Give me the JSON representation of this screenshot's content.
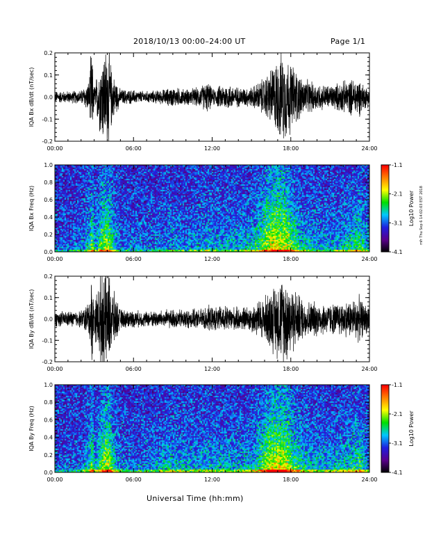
{
  "header": {
    "title": "2018/10/13  00:00–24:00 UT",
    "page": "Page 1/1"
  },
  "footer": {
    "xlabel": "Universal Time (hh:mm)"
  },
  "side_stamp": "mfr Thu Sep 6 14:02:03 EST 2018",
  "colors": {
    "trace": "#000000",
    "colormap": [
      "#000000",
      "#5a008c",
      "#2020e0",
      "#00c8ff",
      "#00e000",
      "#ffff00",
      "#ff8000",
      "#ff0000"
    ]
  },
  "chart_data": [
    {
      "type": "line",
      "ylabel": "IQA Bx dB/dt (nT/sec)",
      "xlim": [
        0,
        24
      ],
      "ylim": [
        -0.2,
        0.2
      ],
      "xticks": [
        "00:00",
        "06:00",
        "12:00",
        "18:00",
        "24:00"
      ],
      "yticks": [
        "-0.2",
        "-0.1",
        "0.0",
        "0.1",
        "0.2"
      ],
      "x_hours": [
        0,
        1,
        2,
        2.6,
        2.8,
        3,
        3.5,
        3.8,
        4.1,
        4.4,
        5,
        6,
        7,
        8,
        9,
        10,
        11,
        11.7,
        12,
        13,
        14,
        15,
        15.6,
        16,
        16.6,
        17,
        17.4,
        17.8,
        18,
        18.4,
        19,
        20,
        21,
        22,
        22.6,
        23.2,
        23.6,
        24
      ],
      "amplitude": [
        0.03,
        0.03,
        0.035,
        0.08,
        0.25,
        0.05,
        0.2,
        0.25,
        0.25,
        0.12,
        0.04,
        0.035,
        0.03,
        0.035,
        0.05,
        0.04,
        0.05,
        0.08,
        0.04,
        0.07,
        0.05,
        0.05,
        0.08,
        0.1,
        0.16,
        0.2,
        0.23,
        0.2,
        0.18,
        0.14,
        0.09,
        0.07,
        0.06,
        0.08,
        0.09,
        0.1,
        0.06,
        0.05
      ]
    },
    {
      "type": "heatmap",
      "ylabel": "IQA Bx Freq (Hz)",
      "colorbar_label": "Log10 Power",
      "xlim": [
        0,
        24
      ],
      "ylim": [
        0,
        1
      ],
      "xticks": [
        "00:00",
        "06:00",
        "12:00",
        "18:00",
        "24:00"
      ],
      "yticks": [
        "0.0",
        "0.2",
        "0.4",
        "0.6",
        "0.8",
        "1.0"
      ],
      "clim": [
        -4.1,
        -1.1
      ],
      "cticks": [
        "-1.1",
        "-2.1",
        "-3.1",
        "-4.1"
      ],
      "x_hours": [
        0,
        1,
        2,
        2.6,
        2.8,
        3,
        3.5,
        3.8,
        4.1,
        4.4,
        5,
        6,
        7,
        8,
        9,
        10,
        11,
        11.7,
        12,
        13,
        14,
        15,
        15.6,
        16,
        16.6,
        17,
        17.4,
        17.8,
        18,
        18.4,
        19,
        20,
        21,
        22,
        22.6,
        23.2,
        23.6,
        24
      ],
      "activity": [
        0.15,
        0.15,
        0.2,
        0.5,
        0.8,
        0.3,
        0.7,
        0.8,
        0.8,
        0.5,
        0.2,
        0.2,
        0.2,
        0.25,
        0.3,
        0.25,
        0.3,
        0.4,
        0.3,
        0.35,
        0.35,
        0.4,
        0.6,
        0.8,
        0.95,
        0.95,
        0.9,
        0.85,
        0.7,
        0.6,
        0.4,
        0.35,
        0.3,
        0.4,
        0.5,
        0.6,
        0.4,
        0.3
      ]
    },
    {
      "type": "line",
      "ylabel": "IQA By dB/dt (nT/sec)",
      "xlim": [
        0,
        24
      ],
      "ylim": [
        -0.2,
        0.2
      ],
      "xticks": [
        "00:00",
        "06:00",
        "12:00",
        "18:00",
        "24:00"
      ],
      "yticks": [
        "-0.2",
        "-0.1",
        "0.0",
        "0.1",
        "0.2"
      ],
      "x_hours": [
        0,
        1,
        2,
        2.6,
        2.8,
        3,
        3.5,
        3.8,
        4.1,
        4.4,
        5,
        6,
        7,
        8,
        9,
        10,
        11,
        11.7,
        12,
        13,
        14,
        15,
        15.6,
        16,
        16.6,
        17,
        17.4,
        17.8,
        18,
        18.4,
        19,
        20,
        21,
        22,
        22.6,
        23.2,
        23.6,
        24
      ],
      "amplitude": [
        0.04,
        0.04,
        0.045,
        0.09,
        0.25,
        0.08,
        0.25,
        0.25,
        0.25,
        0.16,
        0.05,
        0.045,
        0.04,
        0.045,
        0.05,
        0.05,
        0.05,
        0.07,
        0.06,
        0.07,
        0.06,
        0.07,
        0.1,
        0.12,
        0.17,
        0.2,
        0.23,
        0.22,
        0.19,
        0.15,
        0.1,
        0.09,
        0.08,
        0.09,
        0.1,
        0.12,
        0.08,
        0.07
      ]
    },
    {
      "type": "heatmap",
      "ylabel": "IQA By Freq (Hz)",
      "colorbar_label": "Log10 Power",
      "xlim": [
        0,
        24
      ],
      "ylim": [
        0,
        1
      ],
      "xticks": [
        "00:00",
        "06:00",
        "12:00",
        "18:00",
        "24:00"
      ],
      "yticks": [
        "0.0",
        "0.2",
        "0.4",
        "0.6",
        "0.8",
        "1.0"
      ],
      "clim": [
        -4.1,
        -1.1
      ],
      "cticks": [
        "-1.1",
        "-2.1",
        "-3.1",
        "-4.1"
      ],
      "x_hours": [
        0,
        1,
        2,
        2.6,
        2.8,
        3,
        3.5,
        3.8,
        4.1,
        4.4,
        5,
        6,
        7,
        8,
        9,
        10,
        11,
        11.7,
        12,
        13,
        14,
        15,
        15.6,
        16,
        16.6,
        17,
        17.4,
        17.8,
        18,
        18.4,
        19,
        20,
        21,
        22,
        22.6,
        23.2,
        23.6,
        24
      ],
      "activity": [
        0.15,
        0.15,
        0.2,
        0.5,
        0.8,
        0.3,
        0.7,
        0.85,
        0.85,
        0.5,
        0.25,
        0.2,
        0.25,
        0.35,
        0.4,
        0.35,
        0.35,
        0.4,
        0.35,
        0.35,
        0.35,
        0.4,
        0.6,
        0.8,
        0.95,
        0.95,
        0.9,
        0.85,
        0.7,
        0.6,
        0.45,
        0.4,
        0.35,
        0.4,
        0.5,
        0.6,
        0.4,
        0.3
      ]
    }
  ]
}
